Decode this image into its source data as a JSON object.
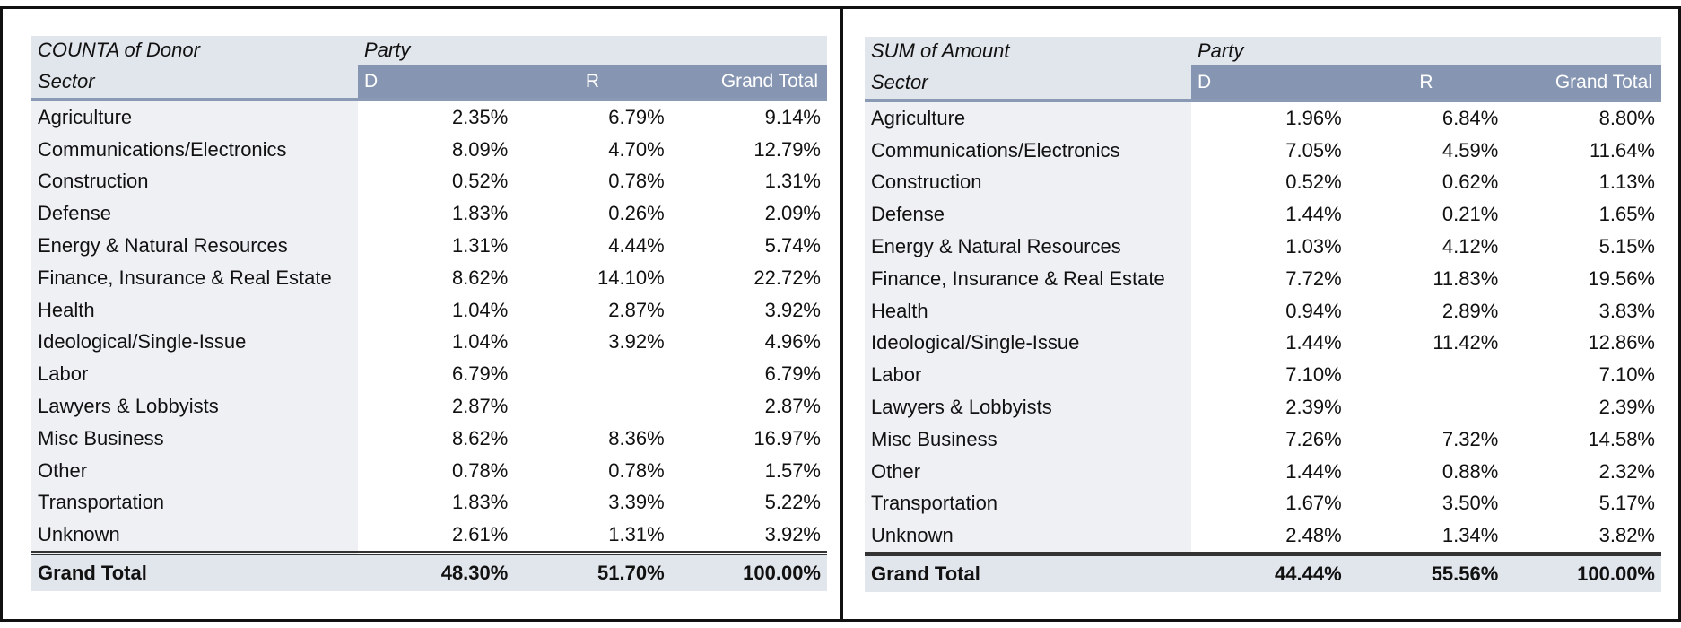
{
  "left_table": {
    "corner_label": "COUNTA of Donor",
    "column_group_label": "Party",
    "row_header": "Sector",
    "columns": [
      "D",
      "R",
      "Grand Total"
    ],
    "rows": [
      {
        "sector": "Agriculture",
        "d": "2.35%",
        "r": "6.79%",
        "total": "9.14%"
      },
      {
        "sector": "Communications/Electronics",
        "d": "8.09%",
        "r": "4.70%",
        "total": "12.79%"
      },
      {
        "sector": "Construction",
        "d": "0.52%",
        "r": "0.78%",
        "total": "1.31%"
      },
      {
        "sector": "Defense",
        "d": "1.83%",
        "r": "0.26%",
        "total": "2.09%"
      },
      {
        "sector": "Energy & Natural Resources",
        "d": "1.31%",
        "r": "4.44%",
        "total": "5.74%"
      },
      {
        "sector": "Finance, Insurance & Real Estate",
        "d": "8.62%",
        "r": "14.10%",
        "total": "22.72%"
      },
      {
        "sector": "Health",
        "d": "1.04%",
        "r": "2.87%",
        "total": "3.92%"
      },
      {
        "sector": "Ideological/Single-Issue",
        "d": "1.04%",
        "r": "3.92%",
        "total": "4.96%"
      },
      {
        "sector": "Labor",
        "d": "6.79%",
        "r": "",
        "total": "6.79%"
      },
      {
        "sector": "Lawyers & Lobbyists",
        "d": "2.87%",
        "r": "",
        "total": "2.87%"
      },
      {
        "sector": "Misc Business",
        "d": "8.62%",
        "r": "8.36%",
        "total": "16.97%"
      },
      {
        "sector": "Other",
        "d": "0.78%",
        "r": "0.78%",
        "total": "1.57%"
      },
      {
        "sector": "Transportation",
        "d": "1.83%",
        "r": "3.39%",
        "total": "5.22%"
      },
      {
        "sector": "Unknown",
        "d": "2.61%",
        "r": "1.31%",
        "total": "3.92%"
      }
    ],
    "grand_total": {
      "label": "Grand Total",
      "d": "48.30%",
      "r": "51.70%",
      "total": "100.00%"
    }
  },
  "right_table": {
    "corner_label": "SUM of Amount",
    "column_group_label": "Party",
    "row_header": "Sector",
    "columns": [
      "D",
      "R",
      "Grand Total"
    ],
    "rows": [
      {
        "sector": "Agriculture",
        "d": "1.96%",
        "r": "6.84%",
        "total": "8.80%"
      },
      {
        "sector": "Communications/Electronics",
        "d": "7.05%",
        "r": "4.59%",
        "total": "11.64%"
      },
      {
        "sector": "Construction",
        "d": "0.52%",
        "r": "0.62%",
        "total": "1.13%"
      },
      {
        "sector": "Defense",
        "d": "1.44%",
        "r": "0.21%",
        "total": "1.65%"
      },
      {
        "sector": "Energy & Natural Resources",
        "d": "1.03%",
        "r": "4.12%",
        "total": "5.15%"
      },
      {
        "sector": "Finance, Insurance & Real Estate",
        "d": "7.72%",
        "r": "11.83%",
        "total": "19.56%"
      },
      {
        "sector": "Health",
        "d": "0.94%",
        "r": "2.89%",
        "total": "3.83%"
      },
      {
        "sector": "Ideological/Single-Issue",
        "d": "1.44%",
        "r": "11.42%",
        "total": "12.86%"
      },
      {
        "sector": "Labor",
        "d": "7.10%",
        "r": "",
        "total": "7.10%"
      },
      {
        "sector": "Lawyers & Lobbyists",
        "d": "2.39%",
        "r": "",
        "total": "2.39%"
      },
      {
        "sector": "Misc Business",
        "d": "7.26%",
        "r": "7.32%",
        "total": "14.58%"
      },
      {
        "sector": "Other",
        "d": "1.44%",
        "r": "0.88%",
        "total": "2.32%"
      },
      {
        "sector": "Transportation",
        "d": "1.67%",
        "r": "3.50%",
        "total": "5.17%"
      },
      {
        "sector": "Unknown",
        "d": "2.48%",
        "r": "1.34%",
        "total": "3.82%"
      }
    ],
    "grand_total": {
      "label": "Grand Total",
      "d": "44.44%",
      "r": "55.56%",
      "total": "100.00%"
    }
  },
  "colors": {
    "header_band": "#8595b2",
    "header_light": "#e1e5ec",
    "row_label_bg": "#eef0f4"
  }
}
